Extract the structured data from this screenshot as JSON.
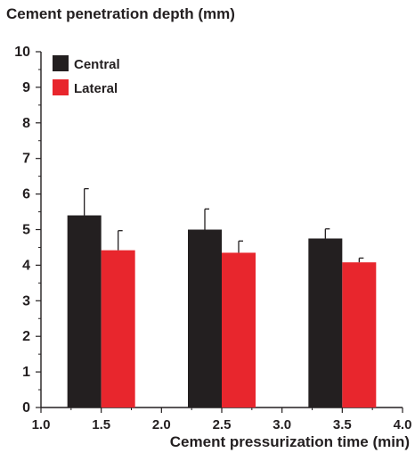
{
  "chart_data": {
    "type": "bar",
    "title": "Cement penetration depth (mm)",
    "xlabel": "Cement pressurization time (min)",
    "ylabel": "",
    "x_ticks": [
      "1.0",
      "1.5",
      "2.0",
      "2.5",
      "3.0",
      "3.5",
      "4.0"
    ],
    "y_ticks": [
      "0",
      "1",
      "2",
      "3",
      "4",
      "5",
      "6",
      "7",
      "8",
      "9",
      "10"
    ],
    "xlim": [
      1.0,
      4.0
    ],
    "ylim": [
      0,
      10
    ],
    "categories": [
      1.5,
      2.5,
      3.5
    ],
    "series": [
      {
        "name": "Central",
        "color": "#231f20",
        "values": [
          5.4,
          5.0,
          4.75
        ],
        "error": [
          0.75,
          0.58,
          0.27
        ]
      },
      {
        "name": "Lateral",
        "color": "#e8262d",
        "values": [
          4.42,
          4.35,
          4.08
        ],
        "error": [
          0.55,
          0.33,
          0.12
        ]
      }
    ],
    "legend_position": "top-left",
    "grid": false
  }
}
